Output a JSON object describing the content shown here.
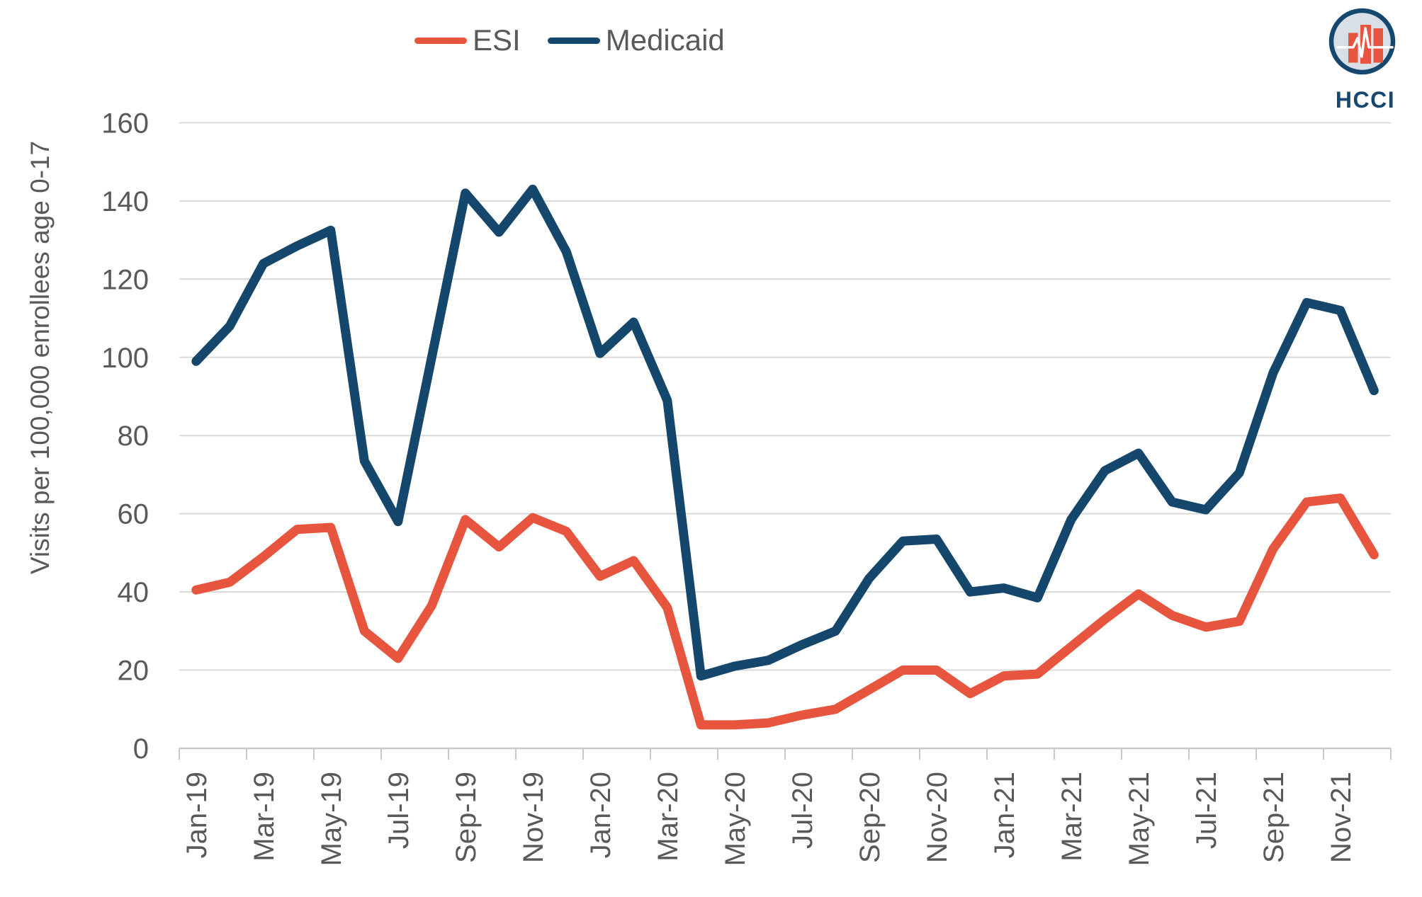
{
  "legend": [
    {
      "label": "ESI",
      "color": "#E8553E"
    },
    {
      "label": "Medicaid",
      "color": "#15476D"
    }
  ],
  "logo": {
    "text": "HCCI",
    "ring_color": "#16476E",
    "face_color": "#D9DFE7",
    "bar_color": "#E8553E"
  },
  "colors": {
    "grid": "#D9D9D9",
    "axis": "#C9C9C9",
    "tick": "#C9C9C9",
    "text": "#595959"
  },
  "chart_data": {
    "type": "line",
    "title": "",
    "xlabel": "",
    "ylabel": "Visits per 100,000 enrollees age 0-17",
    "ylim": [
      0,
      160
    ],
    "ytick_step": 20,
    "grid": true,
    "legend_position": "top-center",
    "categories": [
      "Jan-19",
      "Feb-19",
      "Mar-19",
      "Apr-19",
      "May-19",
      "Jun-19",
      "Jul-19",
      "Aug-19",
      "Sep-19",
      "Oct-19",
      "Nov-19",
      "Dec-19",
      "Jan-20",
      "Feb-20",
      "Mar-20",
      "Apr-20",
      "May-20",
      "Jun-20",
      "Jul-20",
      "Aug-20",
      "Sep-20",
      "Oct-20",
      "Nov-20",
      "Dec-20",
      "Jan-21",
      "Feb-21",
      "Mar-21",
      "Apr-21",
      "May-21",
      "Jun-21",
      "Jul-21",
      "Aug-21",
      "Sep-21",
      "Oct-21",
      "Nov-21",
      "Dec-21"
    ],
    "x_labels_shown_every": 2,
    "series": [
      {
        "name": "ESI",
        "color": "#E8553E",
        "values": [
          40.5,
          42.5,
          49,
          56,
          56.5,
          30,
          23,
          36.5,
          58.5,
          51.5,
          59,
          55.5,
          44,
          48,
          36,
          6,
          6,
          6.5,
          8.5,
          10,
          15,
          20,
          20,
          14,
          18.5,
          19,
          26,
          33,
          39.5,
          34,
          31,
          32.5,
          51,
          63,
          64,
          49.5
        ]
      },
      {
        "name": "Medicaid",
        "color": "#15476D",
        "values": [
          99,
          108,
          124,
          128.5,
          132.5,
          73.5,
          58,
          100,
          142,
          132,
          143,
          127,
          101,
          109,
          89,
          18.5,
          21,
          22.5,
          26.5,
          30,
          43.5,
          53,
          53.5,
          40,
          41,
          38.5,
          58.5,
          71,
          75.5,
          63,
          61,
          70.5,
          96,
          114,
          112,
          91.5
        ]
      }
    ]
  }
}
